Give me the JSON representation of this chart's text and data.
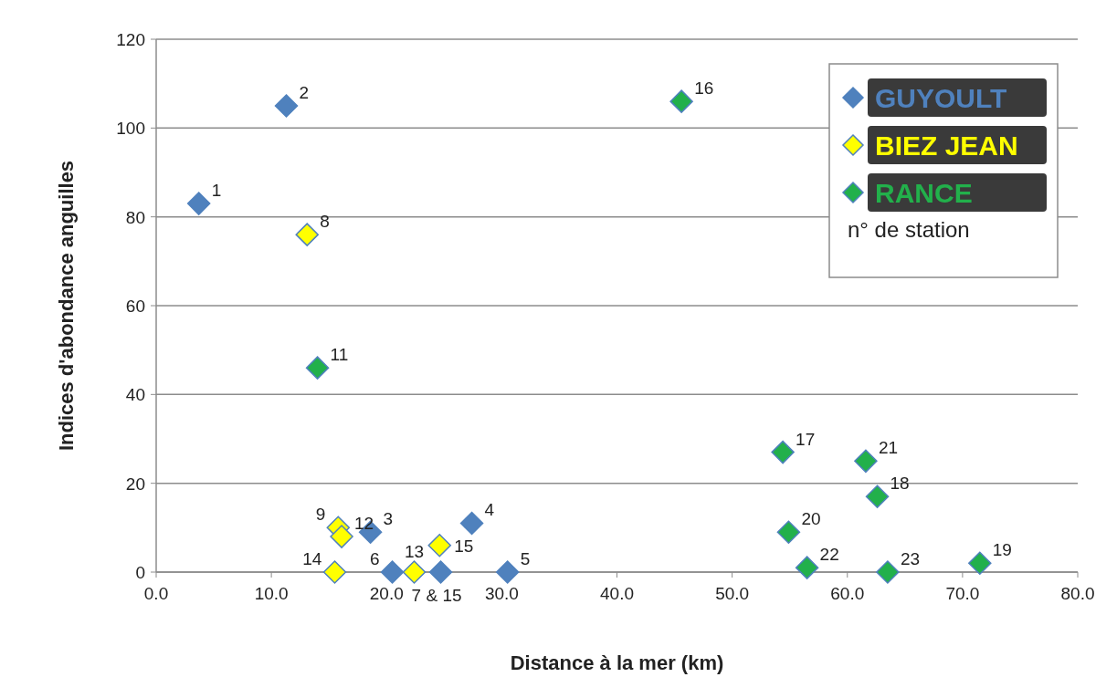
{
  "chart_data": {
    "type": "scatter",
    "xlabel": "Distance à la mer (km)",
    "ylabel": "Indices d'abondance anguilles",
    "xlim": [
      0,
      80
    ],
    "xticks": [
      {
        "value": 0,
        "label": "0.0"
      },
      {
        "value": 10,
        "label": "10.0"
      },
      {
        "value": 20,
        "label": "20.0"
      },
      {
        "value": 30,
        "label": "30.0"
      },
      {
        "value": 40,
        "label": "40.0"
      },
      {
        "value": 50,
        "label": "50.0"
      },
      {
        "value": 60,
        "label": "60.0"
      },
      {
        "value": 70,
        "label": "70.0"
      },
      {
        "value": 80,
        "label": "80.0"
      }
    ],
    "ylim": [
      0,
      120
    ],
    "yticks": [
      0,
      20,
      40,
      60,
      80,
      100,
      120
    ],
    "grid": "y",
    "marker": "diamond",
    "legend": "top right",
    "legend_title": "n° de station",
    "series": [
      {
        "name": "GUYOULT",
        "color": "#4f81bd",
        "x": [
          3.7,
          11.3,
          18.6,
          27.4,
          30.5,
          20.5,
          24.7
        ],
        "values": [
          83,
          105,
          9,
          11,
          0,
          0,
          0
        ]
      },
      {
        "name": "BIEZ JEAN",
        "color": "#ffff00",
        "x": [
          13.1,
          15.8,
          16.1,
          15.5,
          22.4,
          24.6
        ],
        "values": [
          76,
          10,
          8,
          0,
          0,
          6
        ]
      },
      {
        "name": "RANCE",
        "color": "#22b04b",
        "x": [
          14.0,
          45.6,
          54.4,
          61.6,
          62.6,
          54.9,
          56.5,
          63.5,
          71.5
        ],
        "values": [
          46,
          106,
          27,
          25,
          17,
          9,
          1,
          0,
          2
        ]
      }
    ],
    "annotations": [
      {
        "text": "1",
        "x": 3.7,
        "y": 83
      },
      {
        "text": "2",
        "x": 11.3,
        "y": 105
      },
      {
        "text": "3",
        "x": 18.6,
        "y": 9
      },
      {
        "text": "4",
        "x": 27.4,
        "y": 11
      },
      {
        "text": "5",
        "x": 30.5,
        "y": 0
      },
      {
        "text": "6",
        "x": 20.5,
        "y": 0
      },
      {
        "text": "7 & 15",
        "x": 24.7,
        "y": 0
      },
      {
        "text": "8",
        "x": 13.1,
        "y": 76
      },
      {
        "text": "9",
        "x": 15.8,
        "y": 10
      },
      {
        "text": "12",
        "x": 16.1,
        "y": 8
      },
      {
        "text": "14",
        "x": 15.5,
        "y": 0
      },
      {
        "text": "13",
        "x": 22.4,
        "y": 0
      },
      {
        "text": "15",
        "x": 24.6,
        "y": 6
      },
      {
        "text": "11",
        "x": 14.0,
        "y": 46
      },
      {
        "text": "16",
        "x": 45.6,
        "y": 106
      },
      {
        "text": "17",
        "x": 54.4,
        "y": 27
      },
      {
        "text": "21",
        "x": 61.6,
        "y": 25
      },
      {
        "text": "18",
        "x": 62.6,
        "y": 17
      },
      {
        "text": "20",
        "x": 54.9,
        "y": 9
      },
      {
        "text": "22",
        "x": 56.5,
        "y": 1
      },
      {
        "text": "23",
        "x": 63.5,
        "y": 0
      },
      {
        "text": "19",
        "x": 71.5,
        "y": 2
      }
    ]
  }
}
